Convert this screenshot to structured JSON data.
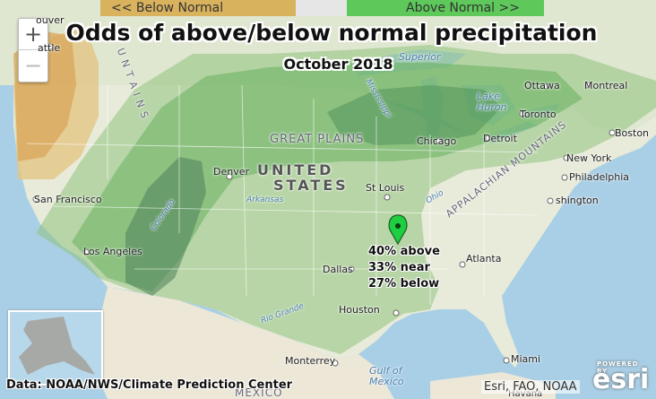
{
  "legend": {
    "below": "<<   Below Normal",
    "above": "Above Normal   >>",
    "colors": {
      "below": "#d9b25e",
      "near": "#e6e6e6",
      "above": "#5ec85a"
    }
  },
  "title": "Odds of above/below normal precipitation",
  "subtitle": "October 2018",
  "zoom": {
    "in": "+",
    "out": "−"
  },
  "popup": {
    "line1": "40% above",
    "line2": "33% near",
    "line3": "27% below"
  },
  "labels": {
    "vancouver": "ouver",
    "seattle": "attle",
    "san_francisco": "San Francisco",
    "los_angeles": "Los Angeles",
    "denver": "Denver",
    "st_louis": "St Louis",
    "dallas": "Dallas",
    "houston": "Houston",
    "chicago": "Chicago",
    "detroit": "Detroit",
    "toronto": "Toronto",
    "ottawa": "Ottawa",
    "montreal": "Montreal",
    "boston": "Boston",
    "new_york": "New York",
    "philadelphia": "Philadelphia",
    "washington": "shington",
    "atlanta": "Atlanta",
    "miami": "Miami",
    "monterrey": "Monterrey",
    "mexico": "MEXICO",
    "great_plains": "GREAT PLAINS",
    "united": "UNITED",
    "states": "STATES",
    "appalachian": "APPALACHIAN MOUNTAINS",
    "rocky": "U N T A I N S",
    "lake_huron": "Lake Huron",
    "superior": "Superior",
    "gulf": "Gulf of Mexico",
    "arkansas": "Arkansas",
    "ohio": "Ohio",
    "rio_grande": "Rio Grande",
    "colorado": "Colorado",
    "mississippi": "Mississippi",
    "havana": "Havana"
  },
  "credits": {
    "data": "Data: NOAA/NWS/Climate Prediction Center",
    "attribution": "Esri, FAO, NOAA"
  },
  "esri": {
    "powered": "POWERED BY",
    "name": "esri"
  }
}
